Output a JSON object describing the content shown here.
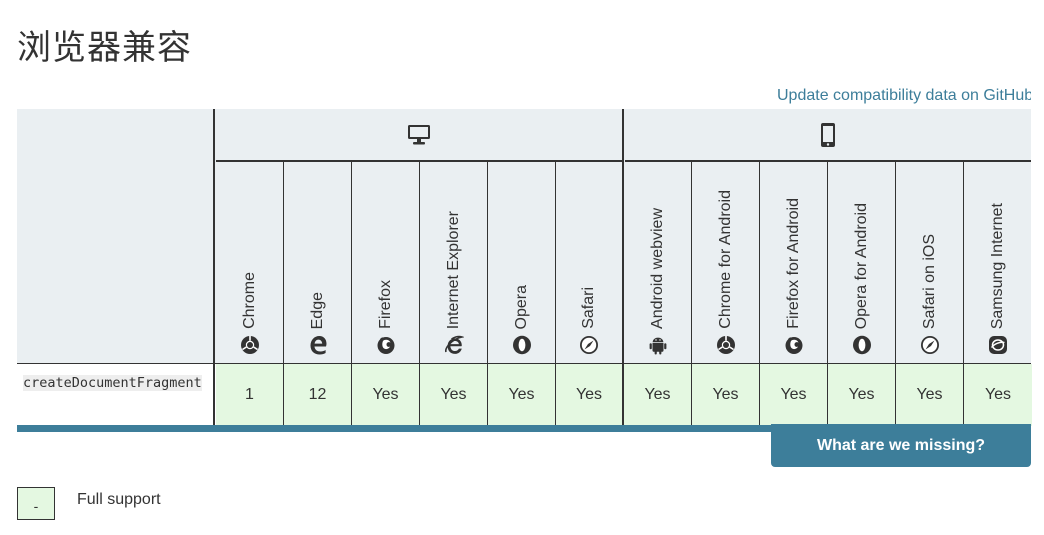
{
  "page": {
    "title": "浏览器兼容"
  },
  "update_link": "Update compatibility data on GitHub",
  "platforms": {
    "desktop": {
      "icon": "desktop-icon"
    },
    "mobile": {
      "icon": "mobile-icon"
    }
  },
  "browsers": [
    {
      "name": "Chrome",
      "icon": "chrome-icon"
    },
    {
      "name": "Edge",
      "icon": "edge-icon"
    },
    {
      "name": "Firefox",
      "icon": "firefox-icon"
    },
    {
      "name": "Internet Explorer",
      "icon": "ie-icon"
    },
    {
      "name": "Opera",
      "icon": "opera-icon"
    },
    {
      "name": "Safari",
      "icon": "safari-icon"
    },
    {
      "name": "Android webview",
      "icon": "android-icon"
    },
    {
      "name": "Chrome for Android",
      "icon": "chrome-icon"
    },
    {
      "name": "Firefox for Android",
      "icon": "firefox-icon"
    },
    {
      "name": "Opera for Android",
      "icon": "opera-icon"
    },
    {
      "name": "Safari on iOS",
      "icon": "safari-icon"
    },
    {
      "name": "Samsung Internet",
      "icon": "samsung-icon"
    }
  ],
  "feature": {
    "name": "createDocumentFragment",
    "support": [
      "1",
      "12",
      "Yes",
      "Yes",
      "Yes",
      "Yes",
      "Yes",
      "Yes",
      "Yes",
      "Yes",
      "Yes",
      "Yes"
    ]
  },
  "missing_button": "What are we missing?",
  "legend": {
    "symbol": "-",
    "label": "Full support"
  },
  "colors": {
    "accent": "#3d7e9a",
    "supported": "#e4f8e1",
    "header_bg": "#eaeff2"
  }
}
